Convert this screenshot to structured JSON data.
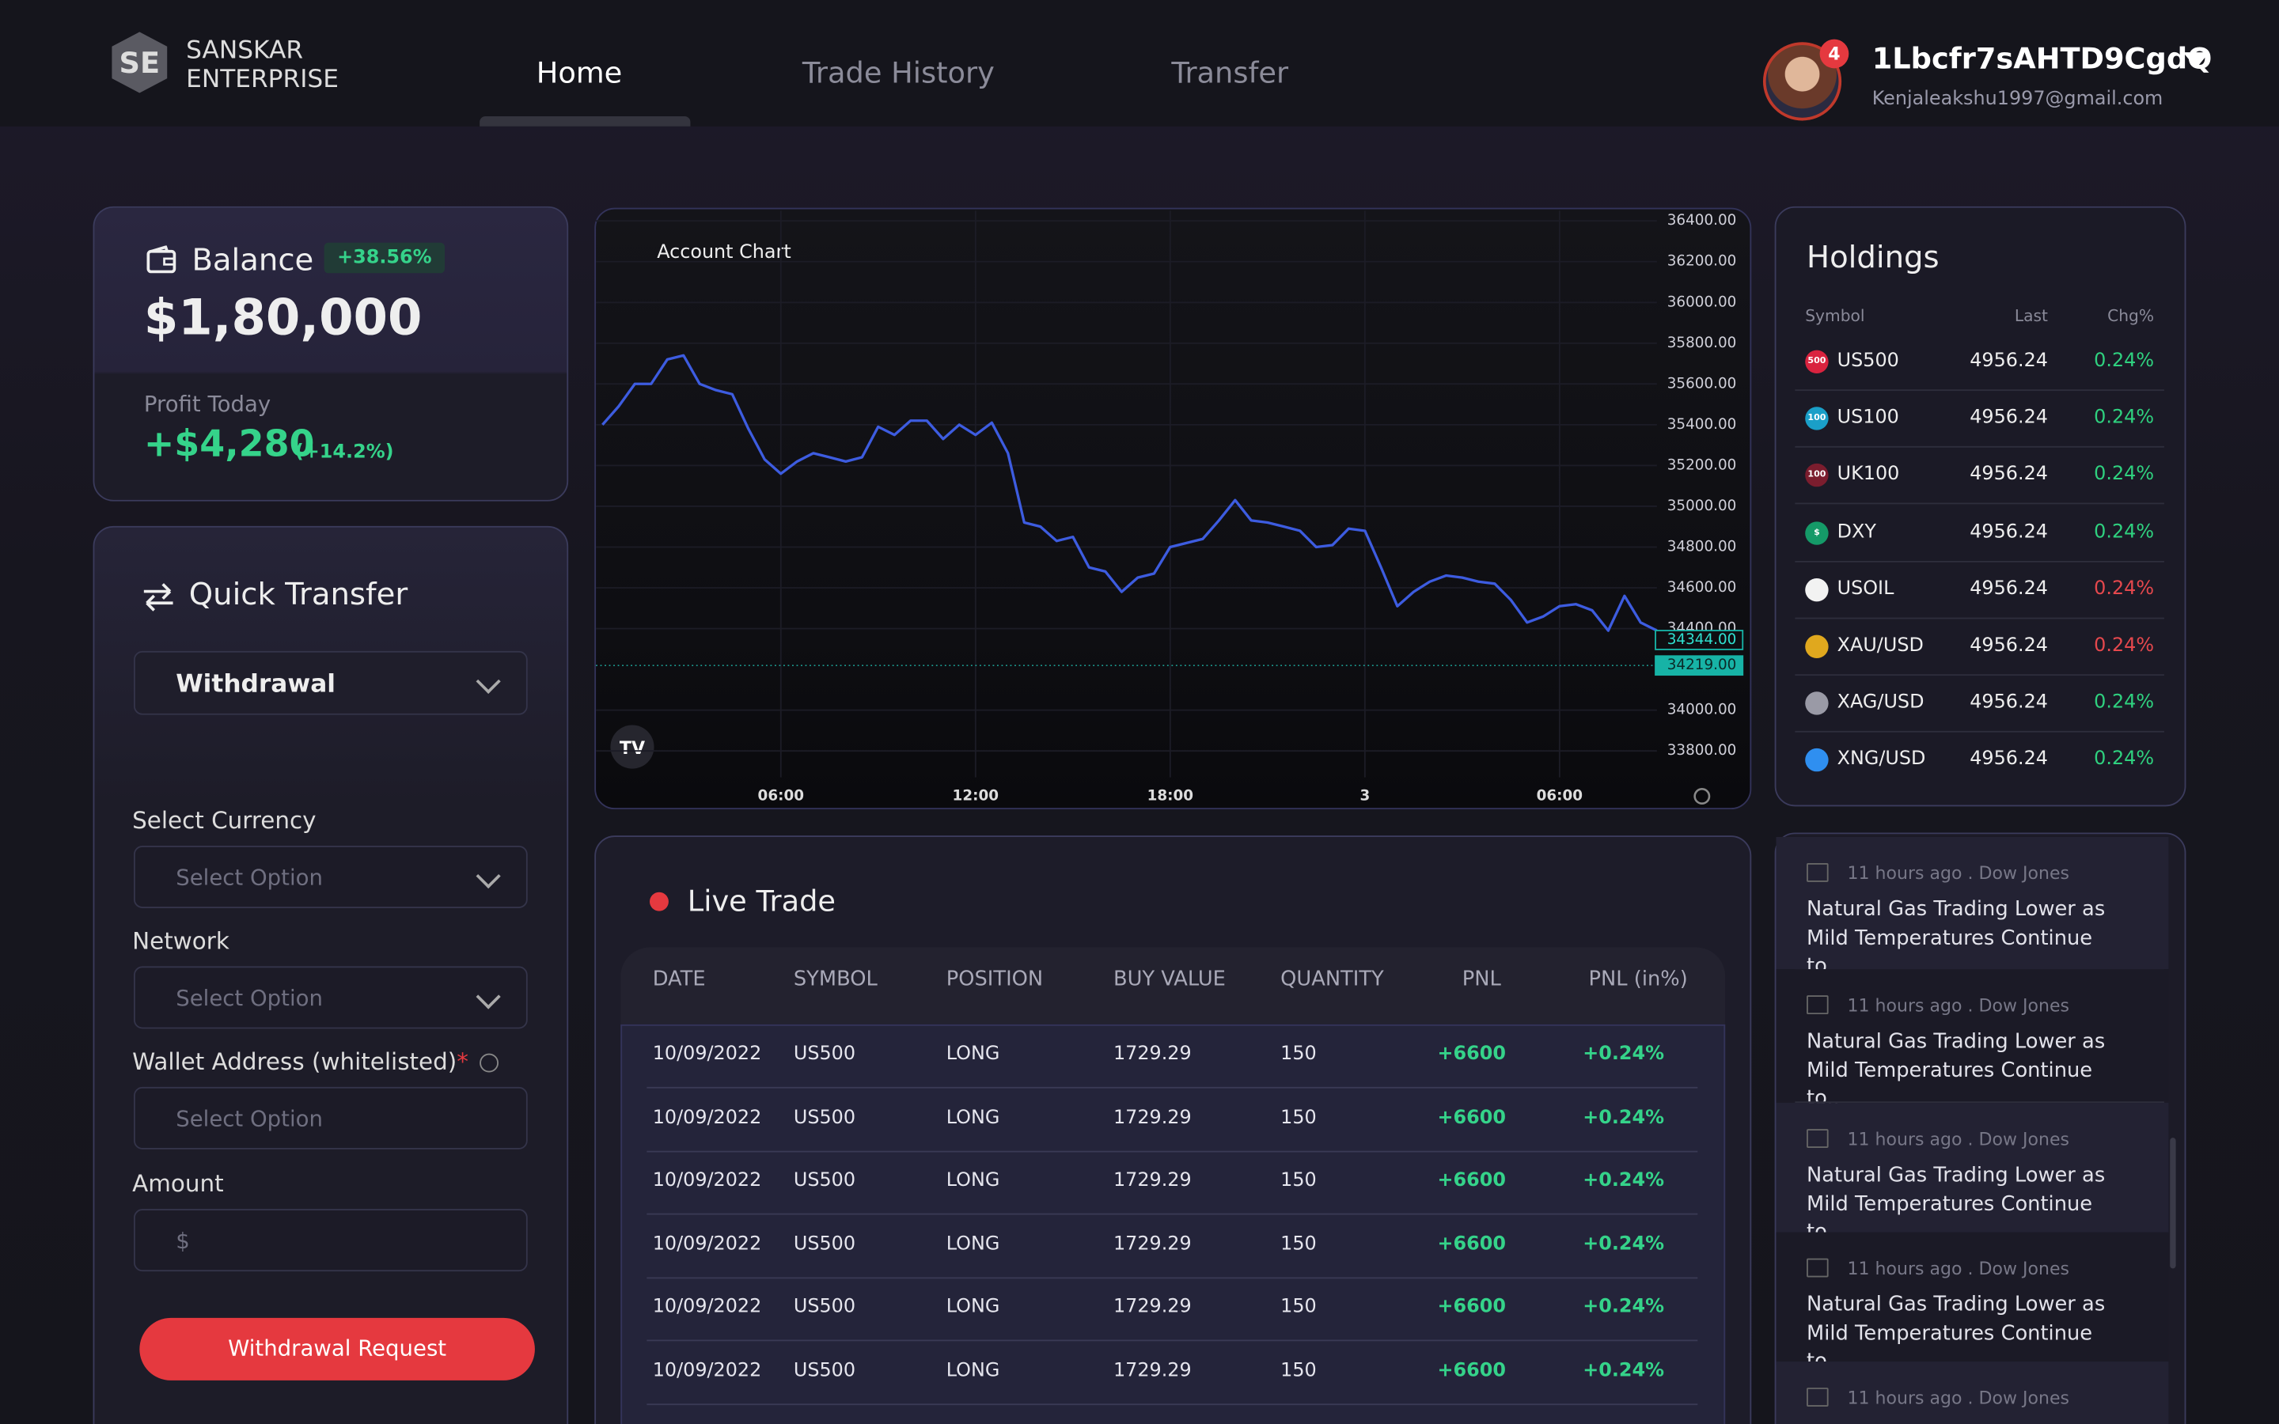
{
  "header": {
    "brand_line1": "SANSKAR",
    "brand_line2": "ENTERPRISE",
    "nav": [
      "Home",
      "Trade History",
      "Transfer"
    ],
    "user": {
      "name": "1Lbcfr7sAHTD9CgdQ",
      "email": "Kenjaleakshu1997@gmail.com",
      "notifications": "4"
    }
  },
  "balance": {
    "title": "Balance",
    "change": "+38.56%",
    "amount": "$1,80,000",
    "profit_label": "Profit Today",
    "profit": "+$4,280",
    "profit_pct": "(+14.2%)"
  },
  "quick_transfer": {
    "title": "Quick Transfer",
    "type": "Withdrawal",
    "fields": [
      {
        "label": "Select Currency",
        "placeholder": "Select Option"
      },
      {
        "label": "Network",
        "placeholder": "Select Option"
      },
      {
        "label": "Wallet Address (whitelisted)",
        "required": "*",
        "placeholder": "Select Option"
      },
      {
        "label": "Amount",
        "placeholder": "$"
      }
    ],
    "button": "Withdrawal Request"
  },
  "chart_data": {
    "type": "line",
    "title": "Account Chart",
    "x": [
      0.5,
      1,
      1.5,
      2,
      2.5,
      3,
      3.5,
      4,
      4.5,
      5,
      5.5,
      6,
      6.5,
      7,
      7.5,
      8,
      8.5,
      9,
      9.5,
      10,
      10.5,
      11,
      11.5,
      12,
      12.5,
      13,
      13.5,
      14,
      14.5,
      15,
      15.5,
      16,
      16.5,
      17,
      17.5,
      18,
      18.5,
      19,
      19.5,
      20,
      20.5,
      21,
      21.5,
      22,
      22.5,
      23,
      23.5,
      24,
      24.5,
      25,
      25.5,
      26,
      26.5,
      27,
      27.5,
      28,
      28.5,
      29,
      29.5,
      30,
      30.5,
      31,
      31.5,
      32,
      32.5,
      33
    ],
    "series": [
      {
        "color": "#3d5ce0",
        "values": [
          35400,
          35490,
          35600,
          35600,
          35720,
          35740,
          35600,
          35570,
          35550,
          35380,
          35230,
          35160,
          35220,
          35260,
          35240,
          35220,
          35240,
          35390,
          35350,
          35420,
          35420,
          35330,
          35400,
          35350,
          35410,
          35260,
          34920,
          34900,
          34830,
          34850,
          34700,
          34680,
          34580,
          34650,
          34670,
          34800,
          34820,
          34840,
          34930,
          35030,
          34930,
          34920,
          34900,
          34880,
          34800,
          34810,
          34890,
          34880,
          34700,
          34510,
          34580,
          34630,
          34660,
          34650,
          34630,
          34620,
          34540,
          34430,
          34460,
          34510,
          34520,
          34490,
          34390,
          34560,
          34430,
          34390
        ]
      }
    ],
    "xlim": [
      0.3,
      33
    ],
    "xticks": [
      {
        "value": 6,
        "label": "06:00"
      },
      {
        "value": 12,
        "label": "12:00"
      },
      {
        "value": 18,
        "label": "18:00"
      },
      {
        "value": 24,
        "label": "3"
      },
      {
        "value": 30,
        "label": "06:00"
      }
    ],
    "ylim": [
      33670,
      36450
    ],
    "yticks": [
      {
        "value": 36400,
        "label": "36400.00"
      },
      {
        "value": 36200,
        "label": "36200.00"
      },
      {
        "value": 36000,
        "label": "36000.00"
      },
      {
        "value": 35800,
        "label": "35800.00"
      },
      {
        "value": 35600,
        "label": "35600.00"
      },
      {
        "value": 35400,
        "label": "35400.00"
      },
      {
        "value": 35200,
        "label": "35200.00"
      },
      {
        "value": 35000,
        "label": "35000.00"
      },
      {
        "value": 34800,
        "label": "34800.00"
      },
      {
        "value": 34600,
        "label": "34600.00"
      },
      {
        "value": 34400,
        "label": "34400.00"
      },
      {
        "value": 34000,
        "label": "34000.00"
      },
      {
        "value": 33800,
        "label": "33800.00"
      }
    ],
    "price_labels": [
      {
        "value": 34344,
        "label": "34344.00"
      },
      {
        "value": 34219,
        "label": "34219.00"
      }
    ],
    "grid": true
  },
  "holdings": {
    "title": "Holdings",
    "columns": [
      "Symbol",
      "Last",
      "Chg%"
    ],
    "rows": [
      {
        "symbol": "US500",
        "icon": "500",
        "icon_color": "#d9233f",
        "last": "4956.24",
        "change": "0.24%",
        "color": "#2fd17f"
      },
      {
        "symbol": "US100",
        "icon": "100",
        "icon_color": "#1a9fc8",
        "last": "4956.24",
        "change": "0.24%",
        "color": "#2fd17f"
      },
      {
        "symbol": "UK100",
        "icon": "100",
        "icon_color": "#7b1d2e",
        "last": "4956.24",
        "change": "0.24%",
        "color": "#2fd17f"
      },
      {
        "symbol": "DXY",
        "icon": "$",
        "icon_color": "#159a68",
        "last": "4956.24",
        "change": "0.24%",
        "color": "#2fd17f"
      },
      {
        "symbol": "USOIL",
        "icon_color": "#f2f2f2",
        "last": "4956.24",
        "change": "0.24%",
        "color": "#e5484d"
      },
      {
        "symbol": "XAU/USD",
        "icon_color": "#e0a81e",
        "last": "4956.24",
        "change": "0.24%",
        "color": "#e5484d"
      },
      {
        "symbol": "XAG/USD",
        "icon_color": "#9a9aa6",
        "last": "4956.24",
        "change": "0.24%",
        "color": "#2fd17f"
      },
      {
        "symbol": "XNG/USD",
        "icon_color": "#2f8ff0",
        "last": "4956.24",
        "change": "0.24%",
        "color": "#2fd17f"
      }
    ]
  },
  "live_trade": {
    "title": "Live Trade",
    "columns": [
      "DATE",
      "SYMBOL",
      "POSITION",
      "BUY VALUE",
      "QUANTITY",
      "PNL",
      "PNL (in%)"
    ],
    "rows": [
      [
        "10/09/2022",
        "US500",
        "LONG",
        "1729.29",
        "150",
        "+6600",
        "+0.24%"
      ],
      [
        "10/09/2022",
        "US500",
        "LONG",
        "1729.29",
        "150",
        "+6600",
        "+0.24%"
      ],
      [
        "10/09/2022",
        "US500",
        "LONG",
        "1729.29",
        "150",
        "+6600",
        "+0.24%"
      ],
      [
        "10/09/2022",
        "US500",
        "LONG",
        "1729.29",
        "150",
        "+6600",
        "+0.24%"
      ],
      [
        "10/09/2022",
        "US500",
        "LONG",
        "1729.29",
        "150",
        "+6600",
        "+0.24%"
      ],
      [
        "10/09/2022",
        "US500",
        "LONG",
        "1729.29",
        "150",
        "+6600",
        "+0.24%"
      ]
    ]
  },
  "news": [
    {
      "time": "11 hours ago . Dow Jones",
      "headline": "Natural Gas Trading Lower as Mild Temperatures Continue to.."
    },
    {
      "time": "11 hours ago . Dow Jones",
      "headline": "Natural Gas Trading Lower as Mild Temperatures Continue to.."
    },
    {
      "time": "11 hours ago . Dow Jones",
      "headline": "Natural Gas Trading Lower as Mild Temperatures Continue to.."
    },
    {
      "time": "11 hours ago . Dow Jones",
      "headline": "Natural Gas Trading Lower as Mild Temperatures Continue to.."
    },
    {
      "time": "11 hours ago . Dow Jones"
    }
  ]
}
